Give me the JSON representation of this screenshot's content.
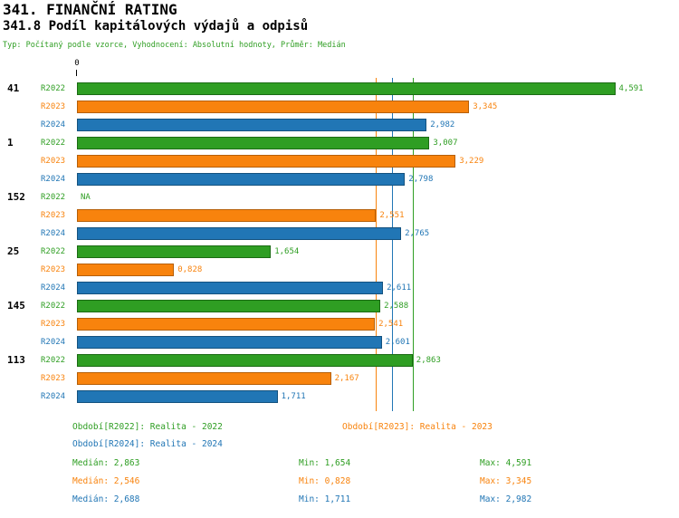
{
  "header": {
    "title": "341. FINANČNÍ RATING",
    "subtitle": "341.8 Podíl kapitálových výdajů a odpisů",
    "meta": "Typ: Počítaný podle vzorce, Vyhodnocení: Absolutní hodnoty, Průměr: Medián"
  },
  "colors": {
    "r2022": {
      "fill": "#2f9e23",
      "border": "#1b6b14"
    },
    "r2023": {
      "fill": "#f8830d",
      "border": "#b65f07"
    },
    "r2024": {
      "fill": "#2176b5",
      "border": "#14527f"
    }
  },
  "chart_data": {
    "type": "bar",
    "orientation": "horizontal",
    "x_axis": {
      "zero_label": "0",
      "xlim": [
        0,
        5.0
      ]
    },
    "series_names": [
      "R2022",
      "R2023",
      "R2024"
    ],
    "na_label": "NA",
    "groups": [
      {
        "label": "41",
        "values": [
          4.591,
          3.345,
          2.982
        ],
        "displays": [
          "4,591",
          "3,345",
          "2,982"
        ]
      },
      {
        "label": "1",
        "values": [
          3.007,
          3.229,
          2.798
        ],
        "displays": [
          "3,007",
          "3,229",
          "2,798"
        ]
      },
      {
        "label": "152",
        "values": [
          null,
          2.551,
          2.765
        ],
        "displays": [
          "NA",
          "2,551",
          "2,765"
        ]
      },
      {
        "label": "25",
        "values": [
          1.654,
          0.828,
          2.611
        ],
        "displays": [
          "1,654",
          "0,828",
          "2,611"
        ]
      },
      {
        "label": "145",
        "values": [
          2.588,
          2.541,
          2.601
        ],
        "displays": [
          "2,588",
          "2,541",
          "2,601"
        ]
      },
      {
        "label": "113",
        "values": [
          2.863,
          2.167,
          1.711
        ],
        "displays": [
          "2,863",
          "2,167",
          "1,711"
        ]
      }
    ],
    "reference_lines": [
      {
        "series": "R2023",
        "value": 2.546
      },
      {
        "series": "R2024",
        "value": 2.688
      },
      {
        "series": "R2022",
        "value": 2.863
      }
    ],
    "grid": false,
    "legend_position": "bottom"
  },
  "legend": {
    "items": [
      {
        "series": "R2022",
        "label": "Období[R2022]: Realita - 2022"
      },
      {
        "series": "R2023",
        "label": "Období[R2023]: Realita - 2023"
      },
      {
        "series": "R2024",
        "label": "Období[R2024]: Realita - 2024"
      }
    ]
  },
  "stats": {
    "rows": [
      {
        "series": "R2022",
        "median": "Medián: 2,863",
        "min": "Min: 1,654",
        "max": "Max: 4,591"
      },
      {
        "series": "R2023",
        "median": "Medián: 2,546",
        "min": "Min: 0,828",
        "max": "Max: 3,345"
      },
      {
        "series": "R2024",
        "median": "Medián: 2,688",
        "min": "Min: 1,711",
        "max": "Max: 2,982"
      }
    ]
  }
}
